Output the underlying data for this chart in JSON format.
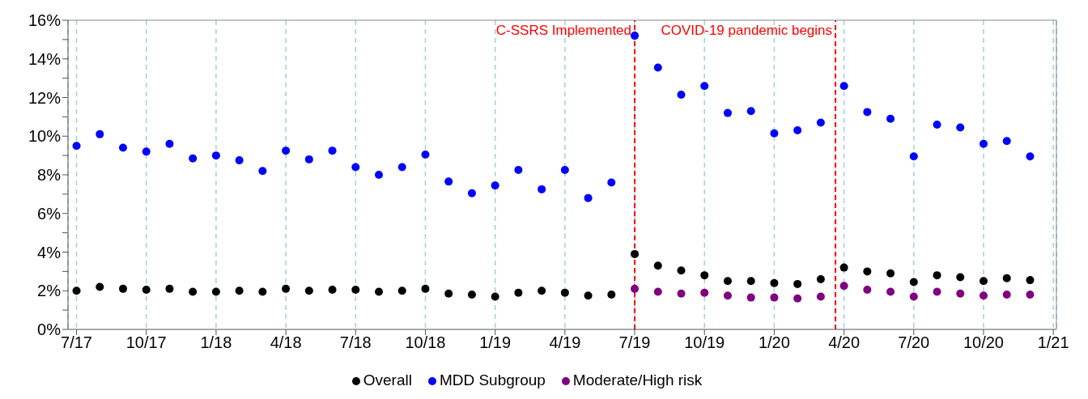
{
  "chart_data": {
    "type": "scatter",
    "x": [
      "2017-07",
      "2017-08",
      "2017-09",
      "2017-10",
      "2017-11",
      "2017-12",
      "2018-01",
      "2018-02",
      "2018-03",
      "2018-04",
      "2018-05",
      "2018-06",
      "2018-07",
      "2018-08",
      "2018-09",
      "2018-10",
      "2018-11",
      "2018-12",
      "2019-01",
      "2019-02",
      "2019-03",
      "2019-04",
      "2019-05",
      "2019-06",
      "2019-07",
      "2019-08",
      "2019-09",
      "2019-10",
      "2019-11",
      "2019-12",
      "2020-01",
      "2020-02",
      "2020-03",
      "2020-04",
      "2020-05",
      "2020-06",
      "2020-07",
      "2020-08",
      "2020-09",
      "2020-10",
      "2020-11",
      "2020-12"
    ],
    "series": [
      {
        "name": "Overall",
        "color": "#000000",
        "values": [
          2.0,
          2.2,
          2.1,
          2.05,
          2.1,
          1.95,
          1.95,
          2.0,
          1.95,
          2.1,
          2.0,
          2.05,
          2.05,
          1.95,
          2.0,
          2.1,
          1.85,
          1.8,
          1.7,
          1.9,
          2.0,
          1.9,
          1.75,
          1.8,
          3.9,
          3.3,
          3.05,
          2.8,
          2.5,
          2.5,
          2.4,
          2.35,
          2.6,
          3.2,
          3.0,
          2.9,
          2.45,
          2.8,
          2.7,
          2.5,
          2.65,
          2.55
        ]
      },
      {
        "name": "MDD Subgroup",
        "color": "#0000ff",
        "values": [
          9.5,
          10.1,
          9.4,
          9.2,
          9.6,
          8.85,
          9.0,
          8.75,
          8.2,
          9.25,
          8.8,
          9.25,
          8.4,
          8.0,
          8.4,
          9.05,
          7.65,
          7.05,
          7.45,
          8.25,
          7.25,
          8.25,
          6.8,
          7.6,
          15.2,
          13.55,
          12.15,
          12.6,
          11.2,
          11.3,
          10.15,
          10.3,
          10.7,
          12.6,
          11.25,
          10.9,
          8.95,
          10.6,
          10.45,
          9.6,
          9.75,
          8.95
        ]
      },
      {
        "name": "Moderate/High risk",
        "color": "#800080",
        "x": [
          "2019-07",
          "2019-08",
          "2019-09",
          "2019-10",
          "2019-11",
          "2019-12",
          "2020-01",
          "2020-02",
          "2020-03",
          "2020-04",
          "2020-05",
          "2020-06",
          "2020-07",
          "2020-08",
          "2020-09",
          "2020-10",
          "2020-11",
          "2020-12"
        ],
        "values": [
          2.1,
          1.95,
          1.85,
          1.9,
          1.75,
          1.65,
          1.65,
          1.6,
          1.7,
          2.25,
          2.05,
          1.95,
          1.7,
          1.95,
          1.85,
          1.75,
          1.8,
          1.8
        ]
      }
    ],
    "xlim": [
      "2017-06-20",
      "2021-01-05"
    ],
    "xticks": [
      {
        "value": "2017-07",
        "label": "7/17"
      },
      {
        "value": "2017-10",
        "label": "10/17"
      },
      {
        "value": "2018-01",
        "label": "1/18"
      },
      {
        "value": "2018-04",
        "label": "4/18"
      },
      {
        "value": "2018-07",
        "label": "7/18"
      },
      {
        "value": "2018-10",
        "label": "10/18"
      },
      {
        "value": "2019-01",
        "label": "1/19"
      },
      {
        "value": "2019-04",
        "label": "4/19"
      },
      {
        "value": "2019-07",
        "label": "7/19"
      },
      {
        "value": "2019-10",
        "label": "10/19"
      },
      {
        "value": "2020-01",
        "label": "1/20"
      },
      {
        "value": "2020-04",
        "label": "4/20"
      },
      {
        "value": "2020-07",
        "label": "7/20"
      },
      {
        "value": "2020-10",
        "label": "10/20"
      },
      {
        "value": "2021-01",
        "label": "1/21"
      }
    ],
    "ylim": [
      0,
      16
    ],
    "yticks": [
      {
        "value": 0,
        "label": "0%"
      },
      {
        "value": 1,
        "label": null
      },
      {
        "value": 2,
        "label": "2%"
      },
      {
        "value": 3,
        "label": null
      },
      {
        "value": 4,
        "label": "4%"
      },
      {
        "value": 5,
        "label": null
      },
      {
        "value": 6,
        "label": "6%"
      },
      {
        "value": 7,
        "label": null
      },
      {
        "value": 8,
        "label": "8%"
      },
      {
        "value": 9,
        "label": null
      },
      {
        "value": 10,
        "label": "10%"
      },
      {
        "value": 11,
        "label": null
      },
      {
        "value": 12,
        "label": "12%"
      },
      {
        "value": 13,
        "label": null
      },
      {
        "value": 14,
        "label": "14%"
      },
      {
        "value": 15,
        "label": null
      },
      {
        "value": 16,
        "label": "16%"
      }
    ],
    "ref_lines": [
      {
        "axis": "x",
        "value": "2019-07",
        "label": "C-SSRS Implemented",
        "color": "#ff0000",
        "line_style": "dashed"
      },
      {
        "axis": "x",
        "value": "2020-03-20",
        "label": "COVID-19 pandemic begins",
        "color": "#ff0000",
        "line_style": "dashed"
      }
    ],
    "grid": "x",
    "legend": "bottom",
    "marker": "circle"
  }
}
